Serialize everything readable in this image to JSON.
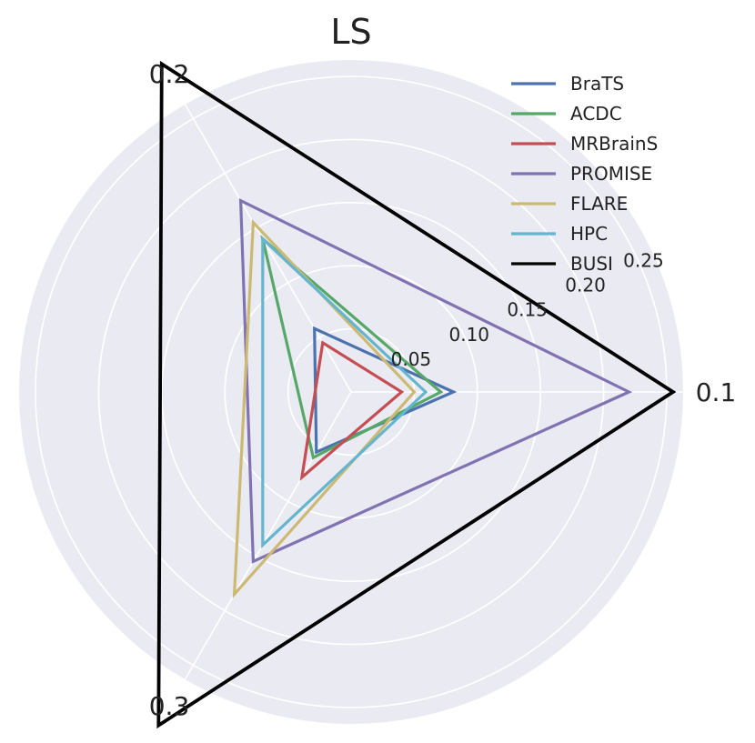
{
  "chart_data": {
    "type": "radar",
    "title": "LS",
    "axes": [
      "0.1",
      "0.2",
      "0.3"
    ],
    "rlim": [
      0,
      0.25
    ],
    "rticks": [
      "0.05",
      "0.10",
      "0.15",
      "0.20",
      "0.25"
    ],
    "grid": true,
    "legend": "top-right",
    "series": [
      {
        "name": "BraTS",
        "color": "#4c72b0",
        "values": [
          0.081,
          0.058,
          0.055
        ]
      },
      {
        "name": "ACDC",
        "color": "#55a868",
        "values": [
          0.071,
          0.14,
          0.06
        ]
      },
      {
        "name": "MRBrainS",
        "color": "#c44e52",
        "values": [
          0.04,
          0.045,
          0.078
        ]
      },
      {
        "name": "PROMISE",
        "color": "#8172b2",
        "values": [
          0.22,
          0.175,
          0.155
        ]
      },
      {
        "name": "FLARE",
        "color": "#ccb974",
        "values": [
          0.05,
          0.155,
          0.185
        ]
      },
      {
        "name": "HPC",
        "color": "#64b5cd",
        "values": [
          0.059,
          0.14,
          0.14
        ]
      },
      {
        "name": "BUSI",
        "color": "#000000",
        "values": [
          0.255,
          0.3,
          0.305
        ]
      }
    ]
  }
}
